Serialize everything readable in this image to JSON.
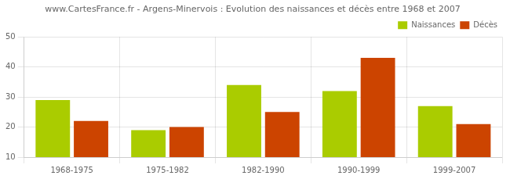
{
  "chart_data": {
    "type": "bar",
    "title": "www.CartesFrance.fr - Argens-Minervois : Evolution des naissances et décès entre 1968 et 2007",
    "categories": [
      "1968-1975",
      "1975-1982",
      "1982-1990",
      "1990-1999",
      "1999-2007"
    ],
    "series": [
      {
        "name": "Naissances",
        "color": "#aacc00",
        "values": [
          29,
          19,
          34,
          32,
          27
        ]
      },
      {
        "name": "Décès",
        "color": "#cc4400",
        "values": [
          22,
          20,
          25,
          43,
          21
        ]
      }
    ],
    "ylim": [
      10,
      50
    ],
    "yticks": [
      10,
      20,
      30,
      40,
      50
    ],
    "grid": true,
    "legend": "upper right"
  }
}
